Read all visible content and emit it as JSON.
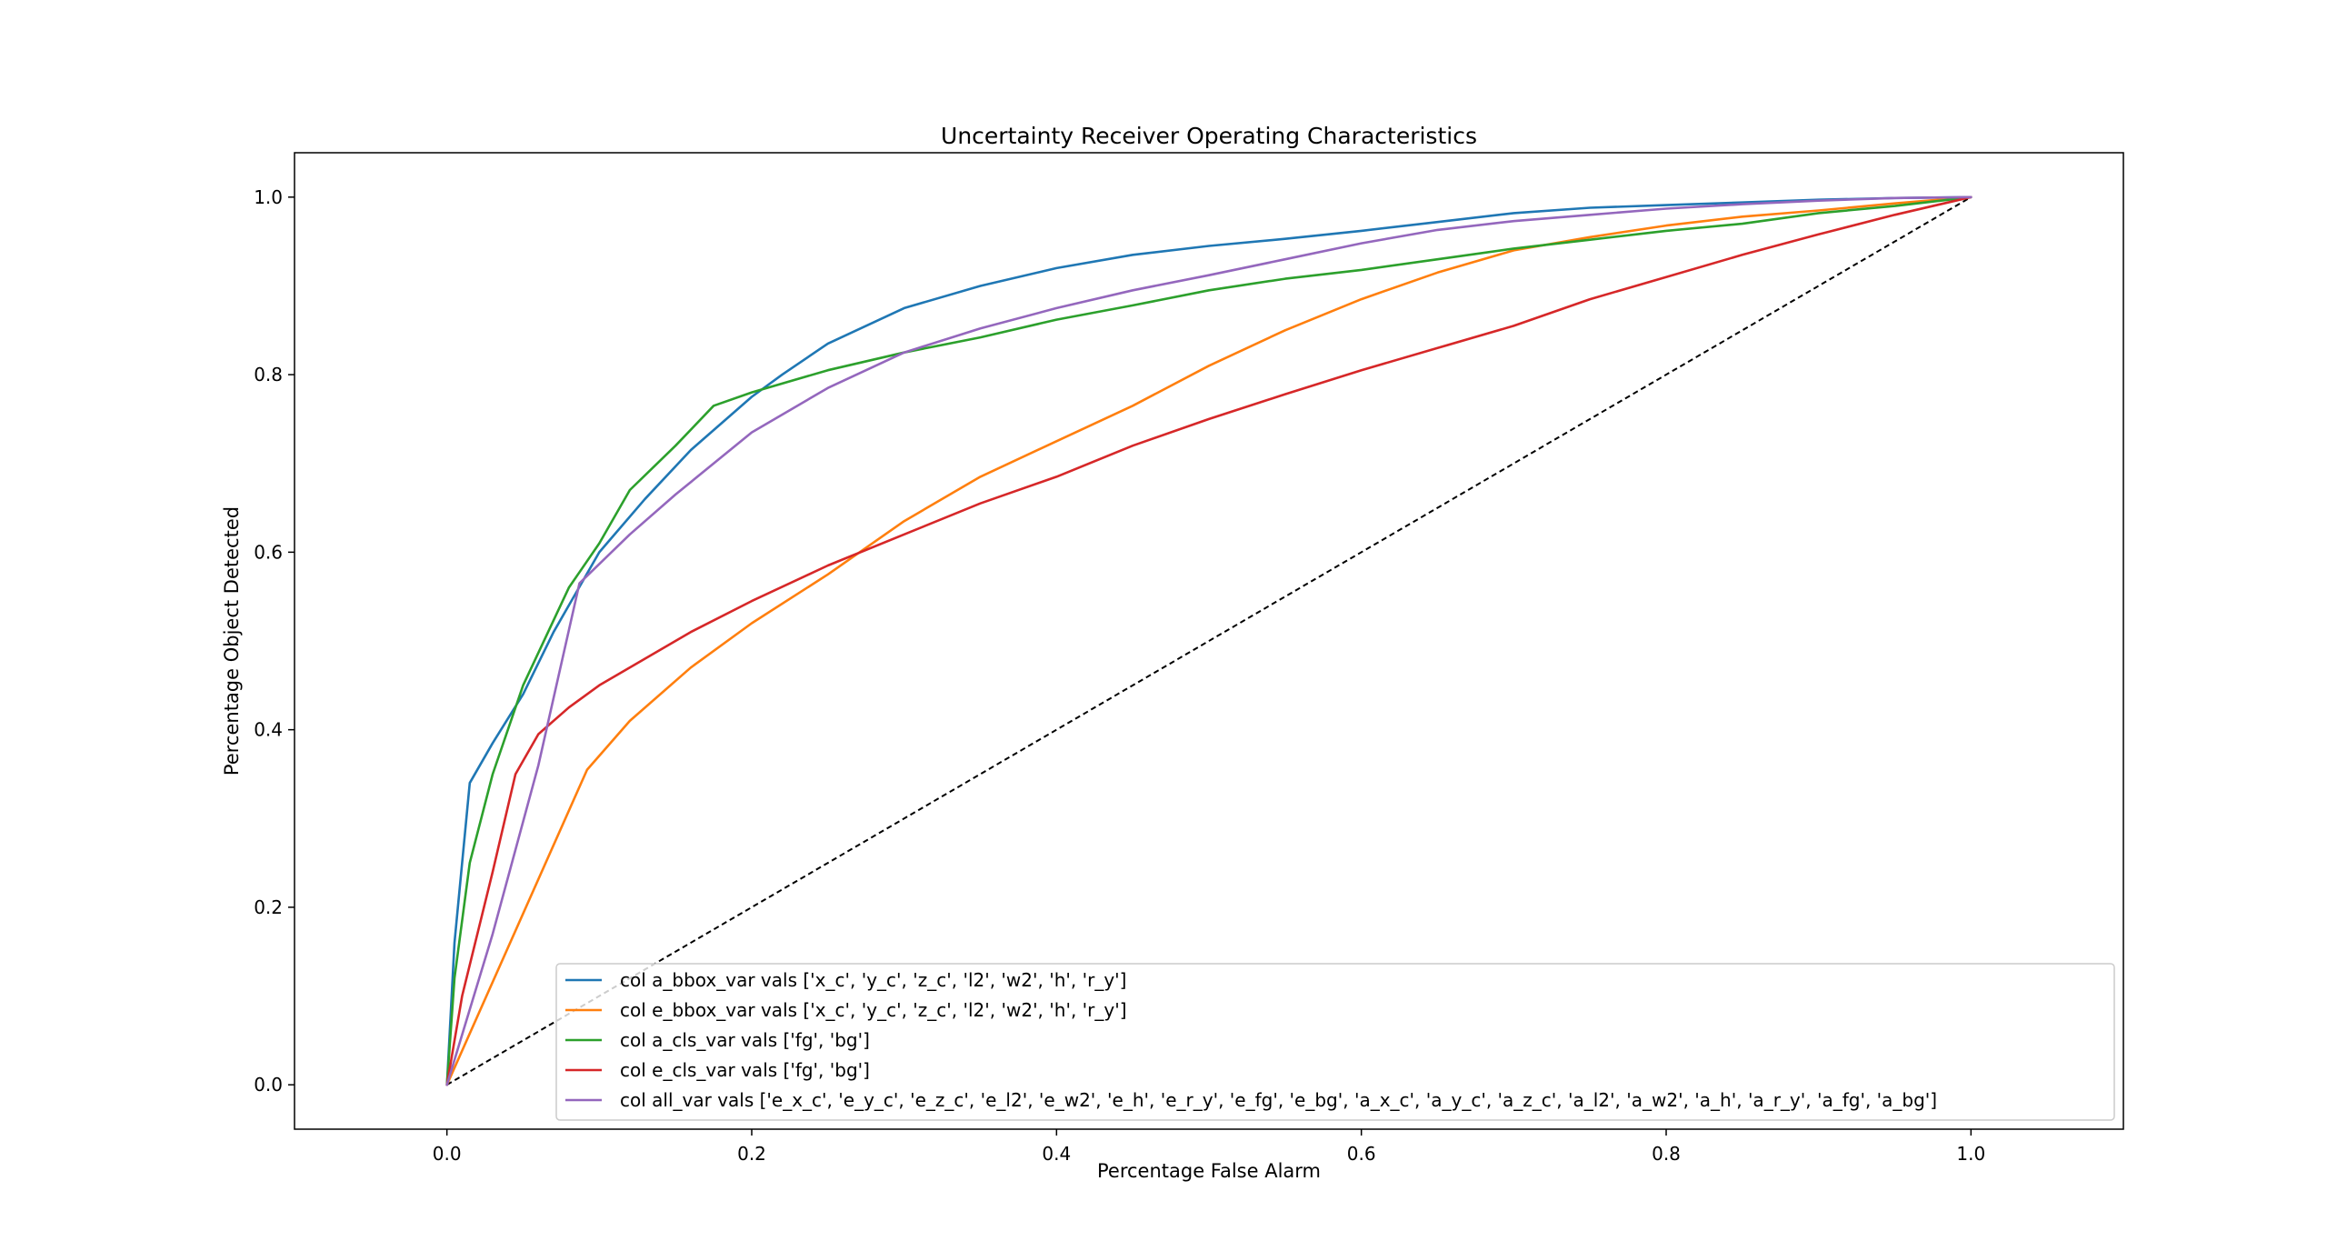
{
  "chart_data": {
    "type": "line",
    "title": "Uncertainty Receiver Operating Characteristics",
    "xlabel": "Percentage False Alarm",
    "ylabel": "Percentage Object Detected",
    "xlim": [
      -0.1,
      1.1
    ],
    "ylim": [
      -0.05,
      1.05
    ],
    "xticks": [
      "0.0",
      "0.2",
      "0.4",
      "0.6",
      "0.8",
      "1.0"
    ],
    "yticks": [
      "0.0",
      "0.2",
      "0.4",
      "0.6",
      "0.8",
      "1.0"
    ],
    "grid": false,
    "legend_position": "lower right",
    "reference_line": {
      "style": "dashed",
      "color": "#000000",
      "x": [
        0,
        1
      ],
      "y": [
        0,
        1
      ]
    },
    "series": [
      {
        "name": "col a_bbox_var vals ['x_c', 'y_c', 'z_c', 'l2', 'w2', 'h', 'r_y']",
        "color": "#1f77b4",
        "x": [
          0,
          0.005,
          0.015,
          0.03,
          0.05,
          0.07,
          0.1,
          0.13,
          0.16,
          0.2,
          0.22,
          0.25,
          0.3,
          0.35,
          0.4,
          0.45,
          0.5,
          0.55,
          0.6,
          0.65,
          0.7,
          0.75,
          0.8,
          0.85,
          0.9,
          0.95,
          1.0
        ],
        "y": [
          0,
          0.16,
          0.34,
          0.385,
          0.44,
          0.51,
          0.6,
          0.66,
          0.715,
          0.775,
          0.8,
          0.835,
          0.875,
          0.9,
          0.92,
          0.935,
          0.945,
          0.953,
          0.962,
          0.972,
          0.982,
          0.988,
          0.991,
          0.994,
          0.997,
          0.999,
          1.0
        ]
      },
      {
        "name": "col e_bbox_var vals ['x_c', 'y_c', 'z_c', 'l2', 'w2', 'h', 'r_y']",
        "color": "#ff7f0e",
        "x": [
          0,
          0.092,
          0.12,
          0.16,
          0.2,
          0.25,
          0.3,
          0.35,
          0.4,
          0.45,
          0.5,
          0.55,
          0.6,
          0.65,
          0.7,
          0.75,
          0.8,
          0.85,
          0.9,
          0.95,
          1.0
        ],
        "y": [
          0,
          0.355,
          0.41,
          0.47,
          0.52,
          0.575,
          0.635,
          0.685,
          0.725,
          0.765,
          0.81,
          0.85,
          0.885,
          0.915,
          0.94,
          0.955,
          0.968,
          0.978,
          0.985,
          0.993,
          1.0
        ]
      },
      {
        "name": "col a_cls_var vals ['fg', 'bg']",
        "color": "#2ca02c",
        "x": [
          0,
          0.005,
          0.015,
          0.03,
          0.05,
          0.08,
          0.1,
          0.12,
          0.15,
          0.175,
          0.2,
          0.25,
          0.3,
          0.35,
          0.4,
          0.45,
          0.5,
          0.55,
          0.6,
          0.65,
          0.7,
          0.75,
          0.8,
          0.85,
          0.9,
          0.95,
          1.0
        ],
        "y": [
          0,
          0.12,
          0.25,
          0.35,
          0.45,
          0.56,
          0.61,
          0.67,
          0.72,
          0.765,
          0.78,
          0.805,
          0.825,
          0.842,
          0.862,
          0.878,
          0.895,
          0.908,
          0.918,
          0.93,
          0.942,
          0.952,
          0.962,
          0.97,
          0.982,
          0.99,
          1.0
        ]
      },
      {
        "name": "col e_cls_var vals ['fg', 'bg']",
        "color": "#d62728",
        "x": [
          0,
          0.01,
          0.03,
          0.045,
          0.06,
          0.08,
          0.1,
          0.13,
          0.16,
          0.2,
          0.25,
          0.3,
          0.35,
          0.4,
          0.45,
          0.5,
          0.55,
          0.6,
          0.65,
          0.7,
          0.75,
          0.8,
          0.85,
          0.9,
          0.95,
          1.0
        ],
        "y": [
          0,
          0.1,
          0.24,
          0.35,
          0.395,
          0.425,
          0.45,
          0.48,
          0.51,
          0.545,
          0.585,
          0.62,
          0.655,
          0.685,
          0.72,
          0.75,
          0.778,
          0.805,
          0.83,
          0.855,
          0.885,
          0.91,
          0.935,
          0.958,
          0.98,
          1.0
        ]
      },
      {
        "name": "col all_var vals ['e_x_c', 'e_y_c', 'e_z_c', 'e_l2', 'e_w2', 'e_h', 'e_r_y', 'e_fg', 'e_bg', 'a_x_c', 'a_y_c', 'a_z_c', 'a_l2', 'a_w2', 'a_h', 'a_r_y', 'a_fg', 'a_bg']",
        "color": "#9467bd",
        "x": [
          0,
          0.03,
          0.06,
          0.087,
          0.12,
          0.15,
          0.2,
          0.25,
          0.3,
          0.35,
          0.4,
          0.45,
          0.5,
          0.55,
          0.6,
          0.65,
          0.7,
          0.75,
          0.8,
          0.85,
          0.9,
          0.95,
          1.0
        ],
        "y": [
          0,
          0.17,
          0.36,
          0.565,
          0.62,
          0.665,
          0.735,
          0.785,
          0.825,
          0.852,
          0.875,
          0.895,
          0.912,
          0.93,
          0.948,
          0.963,
          0.973,
          0.98,
          0.987,
          0.992,
          0.996,
          0.999,
          1.0
        ]
      }
    ]
  }
}
